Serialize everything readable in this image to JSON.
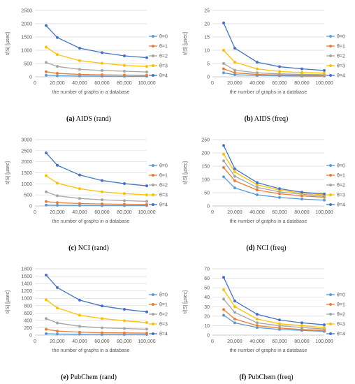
{
  "colors": [
    "#5b9bd5",
    "#ed7d31",
    "#a5a5a5",
    "#ffc000",
    "#4472c4"
  ],
  "chart_data": [
    {
      "id": "a",
      "type": "line",
      "caption_letter": "(a)",
      "caption_text": "AIDS (rand)",
      "ylabel": "t/|S| [µsec]",
      "xlabel": "the number of graphs in a database",
      "x": [
        10000,
        20000,
        40000,
        60000,
        80000,
        100000
      ],
      "xticks": [
        0,
        20000,
        40000,
        60000,
        80000,
        100000
      ],
      "xtick_labels": [
        "0",
        "20,000",
        "40,000",
        "60,000",
        "80,000",
        "100,000"
      ],
      "ylim": [
        0,
        2500
      ],
      "yticks": [
        0,
        500,
        1000,
        1500,
        2000,
        2500
      ],
      "ytick_labels": [
        "0",
        "500",
        "1000",
        "1500",
        "2000",
        "2500"
      ],
      "series": [
        {
          "name": "θ=0",
          "values": [
            60,
            40,
            30,
            25,
            20,
            20
          ]
        },
        {
          "name": "θ=1",
          "values": [
            190,
            130,
            90,
            75,
            65,
            60
          ]
        },
        {
          "name": "θ=2",
          "values": [
            540,
            390,
            280,
            240,
            210,
            180
          ]
        },
        {
          "name": "θ=3",
          "values": [
            1120,
            840,
            610,
            510,
            430,
            390
          ]
        },
        {
          "name": "θ=4",
          "values": [
            1930,
            1480,
            1080,
            910,
            790,
            720
          ]
        }
      ]
    },
    {
      "id": "b",
      "type": "line",
      "caption_letter": "(b)",
      "caption_text": "AIDS (freq)",
      "ylabel": "t/|S| [µsec]",
      "xlabel": "the number of graphs in a database",
      "x": [
        10000,
        20000,
        40000,
        60000,
        80000,
        100000
      ],
      "xticks": [
        0,
        20000,
        40000,
        60000,
        80000,
        100000
      ],
      "xtick_labels": [
        "0",
        "20,000",
        "40,000",
        "60,000",
        "80,000",
        "100,000"
      ],
      "ylim": [
        0,
        25
      ],
      "yticks": [
        0,
        5,
        10,
        15,
        20,
        25
      ],
      "ytick_labels": [
        "0",
        "5",
        "10",
        "15",
        "20",
        "25"
      ],
      "series": [
        {
          "name": "θ=0",
          "values": [
            1.5,
            0.8,
            0.5,
            0.4,
            0.3,
            0.3
          ]
        },
        {
          "name": "θ=1",
          "values": [
            3,
            1.5,
            0.9,
            0.7,
            0.6,
            0.5
          ]
        },
        {
          "name": "θ=2",
          "values": [
            5,
            2.5,
            1.5,
            1.1,
            0.9,
            0.8
          ]
        },
        {
          "name": "θ=3",
          "values": [
            10,
            5.5,
            3,
            2,
            1.6,
            1.4
          ]
        },
        {
          "name": "θ=4",
          "values": [
            20.3,
            10.8,
            5.5,
            3.8,
            3,
            2.4
          ]
        }
      ]
    },
    {
      "id": "c",
      "type": "line",
      "caption_letter": "(c)",
      "caption_text": "NCI (rand)",
      "ylabel": "t/|S| [µsec]",
      "xlabel": "the number of graphs in a database",
      "x": [
        10000,
        20000,
        40000,
        60000,
        80000,
        100000
      ],
      "xticks": [
        0,
        20000,
        40000,
        60000,
        80000,
        100000
      ],
      "xtick_labels": [
        "0",
        "20,000",
        "40,000",
        "60,000",
        "80,000",
        "100,000"
      ],
      "ylim": [
        0,
        3000
      ],
      "yticks": [
        0,
        500,
        1000,
        1500,
        2000,
        2500,
        3000
      ],
      "ytick_labels": [
        "0",
        "500",
        "1000",
        "1500",
        "2000",
        "2500",
        "3000"
      ],
      "series": [
        {
          "name": "θ=0",
          "values": [
            40,
            30,
            25,
            20,
            20,
            20
          ]
        },
        {
          "name": "θ=1",
          "values": [
            200,
            150,
            110,
            90,
            80,
            70
          ]
        },
        {
          "name": "θ=2",
          "values": [
            640,
            460,
            340,
            280,
            240,
            210
          ]
        },
        {
          "name": "θ=3",
          "values": [
            1370,
            1030,
            780,
            640,
            560,
            500
          ]
        },
        {
          "name": "θ=4",
          "values": [
            2400,
            1840,
            1400,
            1150,
            1010,
            910
          ]
        }
      ]
    },
    {
      "id": "d",
      "type": "line",
      "caption_letter": "(d)",
      "caption_text": "NCI (freq)",
      "ylabel": "t/|S| [µsec]",
      "xlabel": "the number of graphs in a database",
      "x": [
        10000,
        20000,
        40000,
        60000,
        80000,
        100000
      ],
      "xticks": [
        0,
        20000,
        40000,
        60000,
        80000,
        100000
      ],
      "xtick_labels": [
        "0",
        "20,000",
        "40,000",
        "60,000",
        "80,000",
        "100,000"
      ],
      "ylim": [
        0,
        250
      ],
      "yticks": [
        0,
        50,
        100,
        150,
        200,
        250
      ],
      "ytick_labels": [
        "0",
        "50",
        "100",
        "150",
        "200",
        "250"
      ],
      "series": [
        {
          "name": "θ=0",
          "values": [
            110,
            68,
            42,
            32,
            26,
            22
          ]
        },
        {
          "name": "θ=1",
          "values": [
            145,
            95,
            60,
            46,
            38,
            33
          ]
        },
        {
          "name": "θ=2",
          "values": [
            170,
            112,
            70,
            53,
            44,
            37
          ]
        },
        {
          "name": "θ=3",
          "values": [
            195,
            128,
            80,
            60,
            48,
            42
          ]
        },
        {
          "name": "θ=4",
          "values": [
            228,
            140,
            88,
            65,
            52,
            45
          ]
        }
      ]
    },
    {
      "id": "e",
      "type": "line",
      "caption_letter": "(e)",
      "caption_text": "PubChem (rand)",
      "ylabel": "t/|S| [µsec]",
      "xlabel": "the number of graphs in a database",
      "x": [
        10000,
        20000,
        40000,
        60000,
        80000,
        100000
      ],
      "xticks": [
        0,
        20000,
        40000,
        60000,
        80000,
        100000
      ],
      "xtick_labels": [
        "0",
        "20,000",
        "40,000",
        "60,000",
        "80,000",
        "100,000"
      ],
      "ylim": [
        0,
        1800
      ],
      "yticks": [
        0,
        200,
        400,
        600,
        800,
        1000,
        1200,
        1400,
        1600,
        1800
      ],
      "ytick_labels": [
        "0",
        "200",
        "400",
        "600",
        "800",
        "1000",
        "1200",
        "1400",
        "1600",
        "1800"
      ],
      "series": [
        {
          "name": "θ=0",
          "values": [
            40,
            30,
            25,
            20,
            20,
            20
          ]
        },
        {
          "name": "θ=1",
          "values": [
            160,
            110,
            80,
            65,
            60,
            55
          ]
        },
        {
          "name": "θ=2",
          "values": [
            450,
            330,
            240,
            200,
            180,
            160
          ]
        },
        {
          "name": "θ=3",
          "values": [
            960,
            740,
            540,
            450,
            390,
            340
          ]
        },
        {
          "name": "θ=4",
          "values": [
            1630,
            1290,
            950,
            790,
            700,
            630
          ]
        }
      ]
    },
    {
      "id": "f",
      "type": "line",
      "caption_letter": "(f)",
      "caption_text": "PubChem (freq)",
      "ylabel": "t/|S| [µsec]",
      "xlabel": "the number of graphs in a database",
      "x": [
        10000,
        20000,
        40000,
        60000,
        80000,
        100000
      ],
      "xticks": [
        0,
        20000,
        40000,
        60000,
        80000,
        100000
      ],
      "xtick_labels": [
        "0",
        "20,000",
        "40,000",
        "60,000",
        "80,000",
        "100,000"
      ],
      "ylim": [
        0,
        70
      ],
      "yticks": [
        0,
        10,
        20,
        30,
        40,
        50,
        60,
        70
      ],
      "ytick_labels": [
        "0",
        "10",
        "20",
        "30",
        "40",
        "50",
        "60",
        "70"
      ],
      "series": [
        {
          "name": "θ=0",
          "values": [
            21,
            13,
            8,
            6,
            5,
            4
          ]
        },
        {
          "name": "θ=1",
          "values": [
            27,
            17,
            10,
            7.5,
            6,
            5
          ]
        },
        {
          "name": "θ=2",
          "values": [
            38,
            24,
            13,
            10,
            8,
            6.5
          ]
        },
        {
          "name": "θ=3",
          "values": [
            48,
            30,
            17,
            12,
            10,
            8
          ]
        },
        {
          "name": "θ=4",
          "values": [
            61,
            36,
            22,
            16,
            13,
            11
          ]
        }
      ]
    }
  ]
}
